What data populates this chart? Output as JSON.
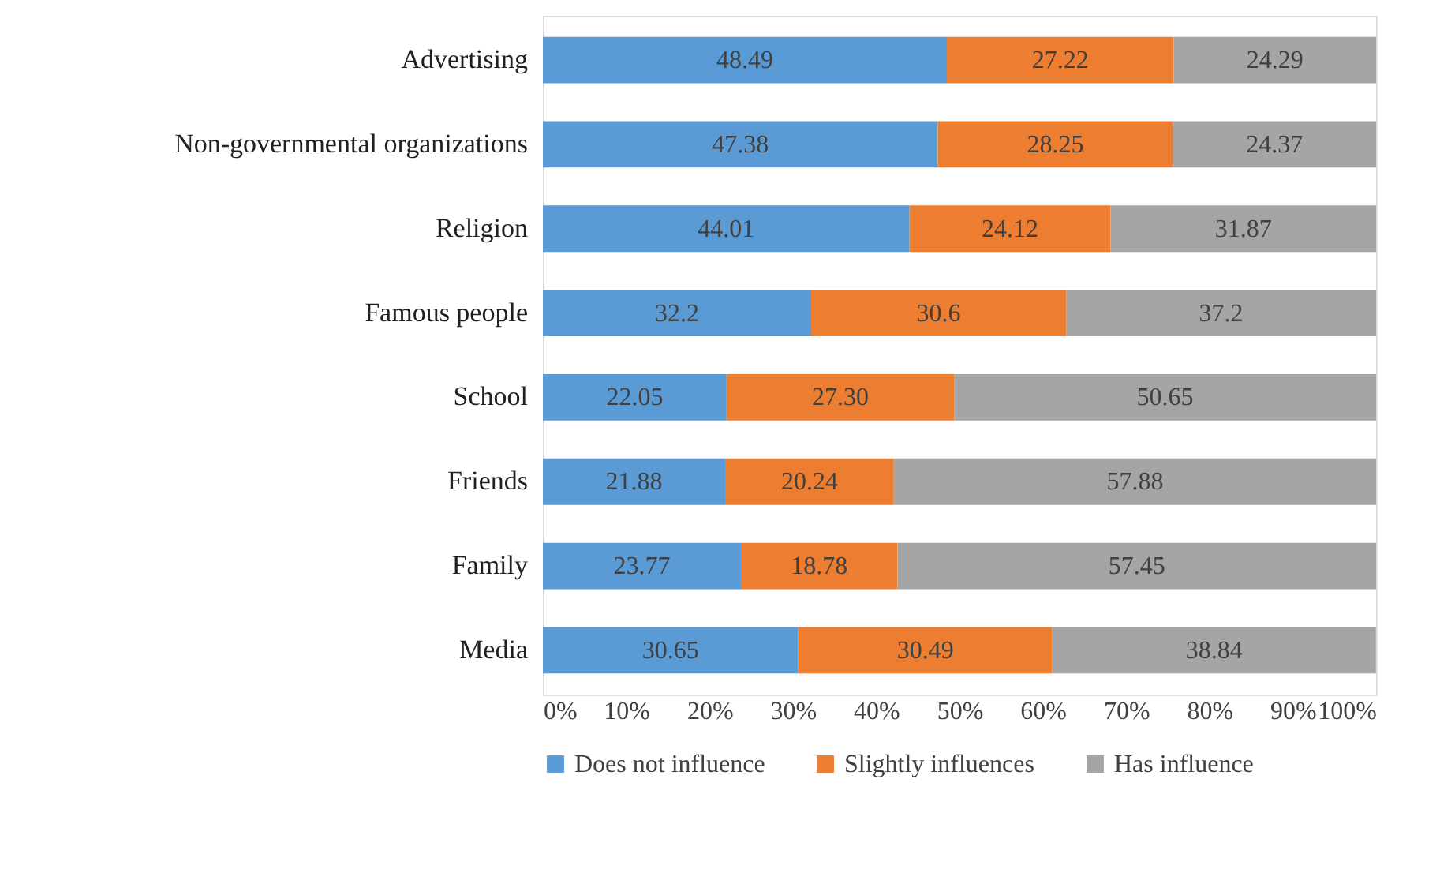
{
  "chart_data": {
    "type": "bar",
    "orientation": "horizontal",
    "stacked": true,
    "categories": [
      "Advertising",
      "Non-governmental organizations",
      "Religion",
      "Famous people",
      "School",
      "Friends",
      "Family",
      "Media"
    ],
    "series": [
      {
        "name": "Does not influence",
        "color": "#5b9bd5",
        "values": [
          48.49,
          47.38,
          44.01,
          32.2,
          22.05,
          21.88,
          23.77,
          30.65
        ],
        "value_labels": [
          "48.49",
          "47.38",
          "44.01",
          "32.2",
          "22.05",
          "21.88",
          "23.77",
          "30.65"
        ]
      },
      {
        "name": "Slightly influences",
        "color": "#ed7d31",
        "values": [
          27.22,
          28.25,
          24.12,
          30.6,
          27.3,
          20.24,
          18.78,
          30.49
        ],
        "value_labels": [
          "27.22",
          "28.25",
          "24.12",
          "30.6",
          "27.30",
          "20.24",
          "18.78",
          "30.49"
        ]
      },
      {
        "name": "Has influence",
        "color": "#a5a5a5",
        "values": [
          24.29,
          24.37,
          31.87,
          37.2,
          50.65,
          57.88,
          57.45,
          38.84
        ],
        "value_labels": [
          "24.29",
          "24.37",
          "31.87",
          "37.2",
          "50.65",
          "57.88",
          "57.45",
          "38.84"
        ]
      }
    ],
    "xlim": [
      0,
      100
    ],
    "xticks": [
      {
        "value": 0,
        "label": "0%"
      },
      {
        "value": 10,
        "label": "10%"
      },
      {
        "value": 20,
        "label": "20%"
      },
      {
        "value": 30,
        "label": "30%"
      },
      {
        "value": 40,
        "label": "40%"
      },
      {
        "value": 50,
        "label": "50%"
      },
      {
        "value": 60,
        "label": "60%"
      },
      {
        "value": 70,
        "label": "70%"
      },
      {
        "value": 80,
        "label": "80%"
      },
      {
        "value": 90,
        "label": "90%"
      },
      {
        "value": 100,
        "label": "100%"
      }
    ],
    "grid": false,
    "legend": "bottom"
  }
}
